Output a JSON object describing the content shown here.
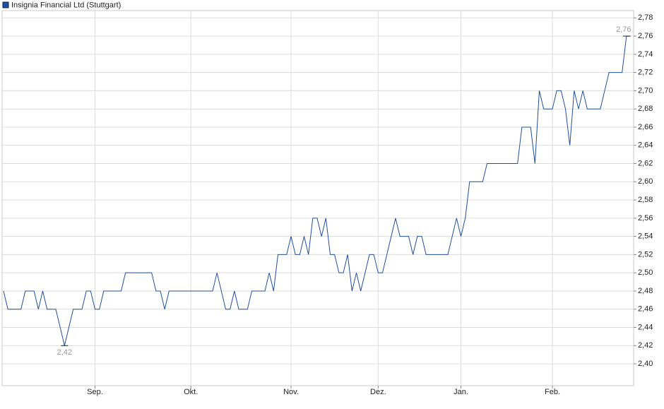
{
  "chart_data": {
    "type": "line",
    "x": [
      0,
      1,
      4,
      5,
      7,
      8,
      9,
      10,
      12,
      14,
      16,
      18,
      19,
      20,
      21,
      22,
      23,
      27,
      28,
      34,
      35,
      36,
      37,
      38,
      48,
      49,
      51,
      52,
      53,
      54,
      56,
      57,
      60,
      61,
      62,
      63,
      65,
      66,
      67,
      68,
      69,
      70,
      71,
      72,
      73,
      74,
      75,
      76,
      77,
      78,
      79,
      80,
      81,
      82,
      84,
      85,
      86,
      87,
      90,
      91,
      93,
      94,
      95,
      96,
      97,
      102,
      104,
      105,
      106,
      107,
      110,
      111,
      118,
      119,
      121,
      122,
      123,
      124,
      126,
      127,
      128,
      129,
      130,
      131,
      132,
      133,
      134,
      137,
      139,
      142,
      143,
      144
    ],
    "series": [
      {
        "name": "Insignia Financial Ltd (Stuttgart)",
        "color": "#1f4f9e",
        "values": [
          2.48,
          2.46,
          2.46,
          2.48,
          2.48,
          2.46,
          2.48,
          2.46,
          2.46,
          2.42,
          2.46,
          2.46,
          2.48,
          2.48,
          2.46,
          2.46,
          2.48,
          2.48,
          2.5,
          2.5,
          2.48,
          2.48,
          2.46,
          2.48,
          2.48,
          2.5,
          2.46,
          2.46,
          2.48,
          2.46,
          2.46,
          2.48,
          2.48,
          2.5,
          2.48,
          2.52,
          2.52,
          2.54,
          2.52,
          2.52,
          2.54,
          2.52,
          2.56,
          2.56,
          2.54,
          2.56,
          2.52,
          2.52,
          2.5,
          2.5,
          2.52,
          2.48,
          2.5,
          2.48,
          2.52,
          2.52,
          2.5,
          2.5,
          2.56,
          2.54,
          2.54,
          2.52,
          2.54,
          2.54,
          2.52,
          2.52,
          2.56,
          2.54,
          2.56,
          2.6,
          2.6,
          2.62,
          2.62,
          2.66,
          2.66,
          2.62,
          2.7,
          2.68,
          2.68,
          2.7,
          2.7,
          2.68,
          2.64,
          2.7,
          2.68,
          2.7,
          2.68,
          2.68,
          2.72,
          2.72,
          2.76,
          2.76
        ]
      }
    ],
    "annotations": [
      {
        "x": 143,
        "value": 2.76,
        "label": "2,76"
      },
      {
        "x": 14,
        "value": 2.42,
        "label": "2,42"
      }
    ],
    "xlim": [
      0,
      144
    ],
    "xticks": [
      {
        "value": 21,
        "label": "Sep."
      },
      {
        "value": 43,
        "label": "Okt."
      },
      {
        "value": 66,
        "label": "Nov."
      },
      {
        "value": 86,
        "label": "Dez."
      },
      {
        "value": 105,
        "label": "Jan."
      },
      {
        "value": 126,
        "label": "Feb."
      }
    ],
    "ylim": [
      2.376,
      2.788
    ],
    "yticks": [
      {
        "value": 2.4,
        "label": "2,40"
      },
      {
        "value": 2.42,
        "label": "2,42"
      },
      {
        "value": 2.44,
        "label": "2,44"
      },
      {
        "value": 2.46,
        "label": "2,46"
      },
      {
        "value": 2.48,
        "label": "2,48"
      },
      {
        "value": 2.5,
        "label": "2,50"
      },
      {
        "value": 2.52,
        "label": "2,52"
      },
      {
        "value": 2.54,
        "label": "2,54"
      },
      {
        "value": 2.56,
        "label": "2,56"
      },
      {
        "value": 2.58,
        "label": "2,58"
      },
      {
        "value": 2.6,
        "label": "2,60"
      },
      {
        "value": 2.62,
        "label": "2,62"
      },
      {
        "value": 2.64,
        "label": "2,64"
      },
      {
        "value": 2.66,
        "label": "2,66"
      },
      {
        "value": 2.68,
        "label": "2,68"
      },
      {
        "value": 2.7,
        "label": "2,70"
      },
      {
        "value": 2.72,
        "label": "2,72"
      },
      {
        "value": 2.74,
        "label": "2,74"
      },
      {
        "value": 2.76,
        "label": "2,76"
      },
      {
        "value": 2.78,
        "label": "2,78"
      }
    ],
    "grid": true
  }
}
